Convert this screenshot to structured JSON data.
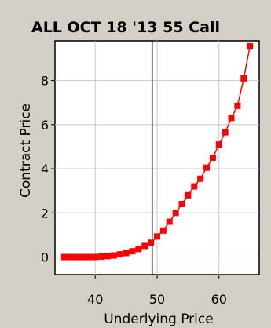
{
  "chart_data": {
    "type": "line",
    "title": "ALL OCT 18 '13 55 Call",
    "xlabel": "Underlying Price",
    "ylabel": "Contract Price",
    "xlim": [
      33.5,
      66.5
    ],
    "ylim": [
      -0.8,
      9.8
    ],
    "xticks": [
      40,
      50,
      60
    ],
    "yticks": [
      0,
      2,
      4,
      6,
      8
    ],
    "grid": true,
    "legend": "none",
    "reference_line": {
      "x": 49.2,
      "color": "#000000"
    },
    "series": [
      {
        "color": "#ff0000",
        "marker": "square",
        "x": [
          35,
          36,
          37,
          38,
          39,
          40,
          41,
          42,
          43,
          44,
          45,
          46,
          47,
          48,
          49,
          50,
          51,
          52,
          53,
          54,
          55,
          56,
          57,
          58,
          59,
          60,
          61,
          62,
          63,
          64,
          65
        ],
        "y": [
          0.0,
          0.0,
          0.0,
          0.0,
          0.0,
          0.0,
          0.02,
          0.04,
          0.07,
          0.12,
          0.18,
          0.26,
          0.36,
          0.5,
          0.65,
          0.93,
          1.2,
          1.6,
          2.0,
          2.4,
          2.8,
          3.2,
          3.55,
          4.05,
          4.5,
          5.1,
          5.65,
          6.3,
          6.85,
          8.1,
          9.55
        ]
      }
    ]
  }
}
